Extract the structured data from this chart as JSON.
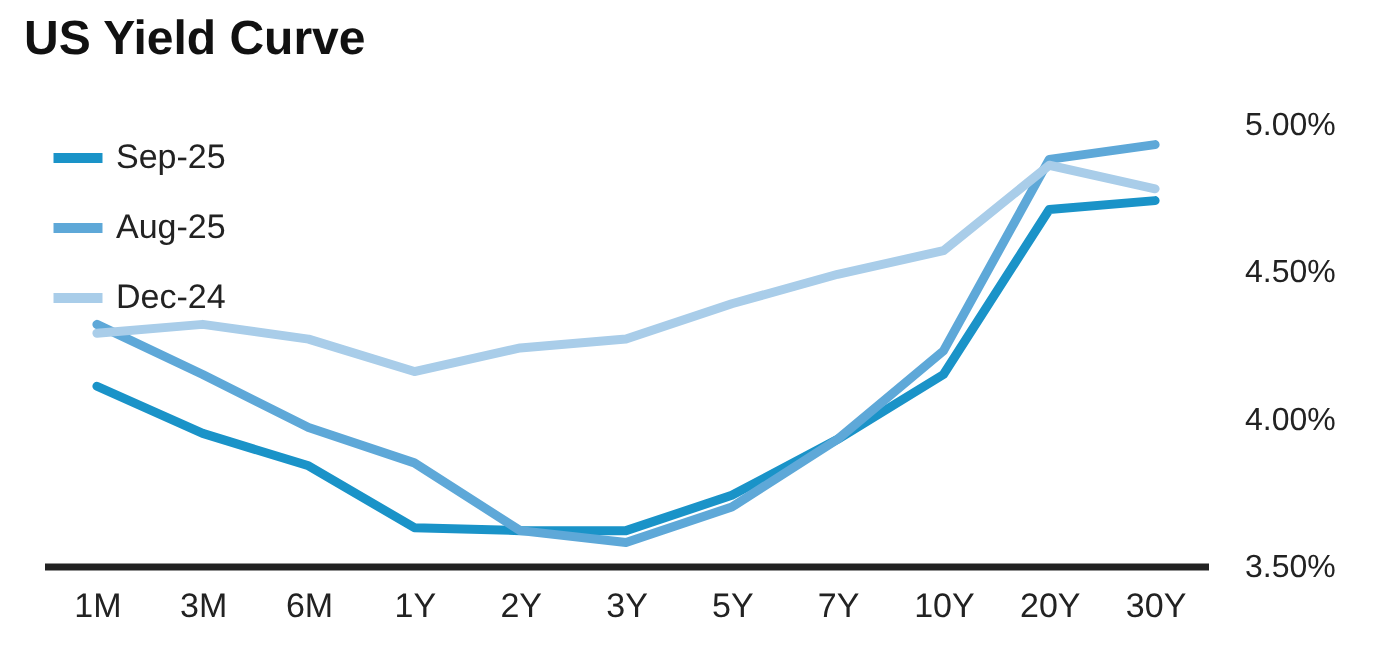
{
  "chart_data": {
    "type": "line",
    "title": "US Yield Curve",
    "categories": [
      "1M",
      "3M",
      "6M",
      "1Y",
      "2Y",
      "3Y",
      "5Y",
      "7Y",
      "10Y",
      "20Y",
      "30Y"
    ],
    "series": [
      {
        "name": "Sep-25",
        "color": "#1a93c8",
        "values": [
          4.11,
          3.95,
          3.84,
          3.63,
          3.62,
          3.62,
          3.74,
          3.93,
          4.15,
          4.71,
          4.74
        ]
      },
      {
        "name": "Aug-25",
        "color": "#5ea8d8",
        "values": [
          4.32,
          4.15,
          3.97,
          3.85,
          3.62,
          3.58,
          3.7,
          3.93,
          4.23,
          4.88,
          4.93
        ]
      },
      {
        "name": "Dec-24",
        "color": "#a9cde9",
        "values": [
          4.29,
          4.32,
          4.27,
          4.16,
          4.24,
          4.27,
          4.39,
          4.49,
          4.57,
          4.86,
          4.78
        ]
      }
    ],
    "ylim": [
      3.5,
      5.0
    ],
    "yticks": [
      {
        "value": 3.5,
        "label": "3.50%"
      },
      {
        "value": 4.0,
        "label": "4.00%"
      },
      {
        "value": 4.5,
        "label": "4.50%"
      },
      {
        "value": 5.0,
        "label": "5.00%"
      }
    ],
    "grid": false,
    "legend": "top left",
    "marker": "none",
    "line_style": "solid"
  }
}
